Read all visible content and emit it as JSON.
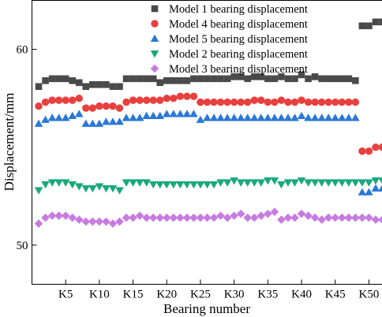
{
  "chart_data": {
    "type": "scatter",
    "xlabel": "Bearing number",
    "ylabel": "Displacement/mm",
    "xlim": [
      0,
      52
    ],
    "ylim": [
      48,
      62.5
    ],
    "x_ticks": [
      5,
      10,
      15,
      20,
      25,
      30,
      35,
      40,
      45,
      50
    ],
    "x_tick_labels": [
      "K5",
      "K10",
      "K15",
      "K20",
      "K25",
      "K30",
      "K35",
      "K40",
      "K45",
      "K50"
    ],
    "y_ticks": [
      50,
      60
    ],
    "y_tick_labels": [
      "50",
      "60"
    ],
    "legend_position": "top-right",
    "grid": false,
    "x": [
      1,
      2,
      3,
      4,
      5,
      6,
      7,
      8,
      9,
      10,
      11,
      12,
      13,
      14,
      15,
      16,
      17,
      18,
      19,
      20,
      21,
      22,
      23,
      24,
      25,
      26,
      27,
      28,
      29,
      30,
      31,
      32,
      33,
      34,
      35,
      36,
      37,
      38,
      39,
      40,
      41,
      42,
      43,
      44,
      45,
      46,
      47,
      48,
      49,
      50,
      51,
      52
    ],
    "series": [
      {
        "name": "Model 1 bearing displacement",
        "marker": "square",
        "color": "#4a4a4a",
        "values": [
          58.1,
          58.4,
          58.5,
          58.5,
          58.5,
          58.4,
          58.3,
          58.1,
          58.2,
          58.2,
          58.2,
          58.1,
          58.1,
          58.5,
          58.5,
          58.5,
          58.5,
          58.5,
          58.3,
          58.4,
          58.4,
          58.4,
          58.4,
          58.5,
          58.5,
          58.5,
          58.5,
          58.5,
          58.5,
          58.6,
          58.6,
          58.5,
          58.6,
          58.6,
          58.5,
          58.5,
          58.6,
          58.5,
          58.5,
          58.7,
          58.5,
          58.6,
          58.5,
          58.5,
          58.5,
          58.5,
          58.5,
          58.4,
          61.2,
          61.2,
          61.4,
          61.4
        ]
      },
      {
        "name": "Model 4 bearing displacement",
        "marker": "circle",
        "color": "#e8403e",
        "values": [
          57.1,
          57.3,
          57.4,
          57.4,
          57.4,
          57.4,
          57.5,
          57.0,
          57.0,
          57.1,
          57.1,
          57.1,
          57.0,
          57.3,
          57.4,
          57.4,
          57.4,
          57.4,
          57.4,
          57.5,
          57.5,
          57.6,
          57.6,
          57.6,
          57.3,
          57.3,
          57.3,
          57.3,
          57.3,
          57.3,
          57.3,
          57.3,
          57.4,
          57.4,
          57.3,
          57.3,
          57.4,
          57.3,
          57.3,
          57.4,
          57.3,
          57.3,
          57.3,
          57.3,
          57.3,
          57.3,
          57.3,
          57.3,
          54.8,
          54.8,
          55.0,
          55.0
        ]
      },
      {
        "name": "Model 5 bearing displacement",
        "marker": "triangle-up",
        "color": "#2a78d8",
        "values": [
          56.2,
          56.4,
          56.5,
          56.5,
          56.5,
          56.6,
          56.7,
          56.2,
          56.2,
          56.2,
          56.3,
          56.3,
          56.3,
          56.5,
          56.5,
          56.5,
          56.6,
          56.6,
          56.6,
          56.7,
          56.7,
          56.7,
          56.7,
          56.7,
          56.4,
          56.5,
          56.5,
          56.5,
          56.5,
          56.5,
          56.5,
          56.5,
          56.5,
          56.5,
          56.5,
          56.5,
          56.5,
          56.5,
          56.5,
          56.6,
          56.5,
          56.5,
          56.5,
          56.5,
          56.5,
          56.5,
          56.5,
          56.5,
          52.7,
          52.7,
          52.9,
          52.9
        ]
      },
      {
        "name": "Model 2 bearing displacement",
        "marker": "triangle-down",
        "color": "#19a97a",
        "values": [
          52.8,
          53.1,
          53.2,
          53.2,
          53.2,
          53.1,
          53.0,
          52.9,
          52.9,
          53.0,
          52.9,
          52.9,
          52.8,
          53.2,
          53.2,
          53.2,
          53.2,
          53.1,
          53.1,
          53.1,
          53.1,
          53.1,
          53.1,
          53.1,
          53.1,
          53.1,
          53.1,
          53.2,
          53.2,
          53.3,
          53.2,
          53.2,
          53.2,
          53.2,
          53.3,
          53.3,
          53.1,
          53.2,
          53.2,
          53.3,
          53.2,
          53.2,
          53.2,
          53.2,
          53.2,
          53.2,
          53.2,
          53.2,
          53.2,
          53.2,
          53.3,
          53.3
        ]
      },
      {
        "name": "Model 3 bearing displacement",
        "marker": "diamond",
        "color": "#c77be0",
        "values": [
          51.1,
          51.4,
          51.5,
          51.5,
          51.5,
          51.4,
          51.3,
          51.2,
          51.2,
          51.2,
          51.2,
          51.1,
          51.2,
          51.4,
          51.4,
          51.5,
          51.4,
          51.4,
          51.4,
          51.4,
          51.4,
          51.4,
          51.4,
          51.4,
          51.4,
          51.4,
          51.4,
          51.5,
          51.4,
          51.5,
          51.6,
          51.4,
          51.4,
          51.5,
          51.6,
          51.7,
          51.3,
          51.4,
          51.4,
          51.6,
          51.5,
          51.4,
          51.3,
          51.4,
          51.4,
          51.4,
          51.4,
          51.4,
          51.4,
          51.4,
          51.3,
          51.3
        ]
      }
    ]
  }
}
